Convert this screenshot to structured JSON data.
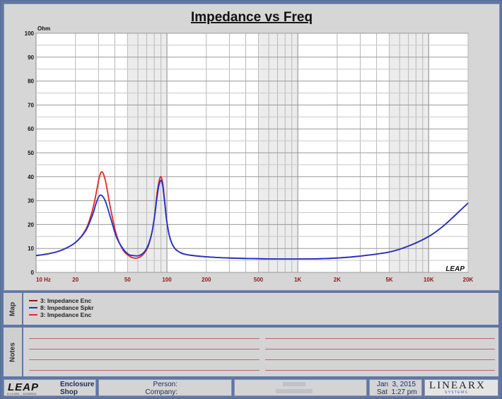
{
  "chart_data": {
    "type": "line",
    "title": "Impedance vs Freq",
    "ylabel": "Ohm",
    "xscale": "log",
    "xlim": [
      10,
      20000
    ],
    "ylim": [
      0,
      100
    ],
    "grid": true,
    "x_ticks": [
      {
        "value": 10,
        "label": "10  Hz"
      },
      {
        "value": 20,
        "label": "20"
      },
      {
        "value": 50,
        "label": "50"
      },
      {
        "value": 100,
        "label": "100"
      },
      {
        "value": 200,
        "label": "200"
      },
      {
        "value": 500,
        "label": "500"
      },
      {
        "value": 1000,
        "label": "1K"
      },
      {
        "value": 2000,
        "label": "2K"
      },
      {
        "value": 5000,
        "label": "5K"
      },
      {
        "value": 10000,
        "label": "10K"
      },
      {
        "value": 20000,
        "label": "20K"
      }
    ],
    "y_ticks": [
      0,
      10,
      20,
      30,
      40,
      50,
      60,
      70,
      80,
      90,
      100
    ],
    "series": [
      {
        "name": "3: Impedance Enc",
        "color": "#e8252a",
        "x": [
          10,
          13,
          16,
          20,
          24,
          27,
          29,
          30.5,
          32,
          34,
          37,
          41,
          46,
          51,
          56,
          61,
          67,
          72,
          77,
          81,
          84,
          87,
          90,
          93,
          96,
          100,
          106,
          115,
          130,
          150,
          200,
          300,
          500,
          700,
          1000,
          1500,
          2000,
          3000,
          5000,
          7000,
          10000,
          13000,
          16000,
          20000
        ],
        "y": [
          7,
          8,
          9.5,
          12.5,
          18,
          26,
          34,
          40,
          42,
          38,
          27,
          16,
          9.5,
          7,
          6,
          6.2,
          8,
          11,
          17,
          25,
          33,
          38,
          40,
          37,
          30,
          21,
          14,
          10,
          8,
          7.2,
          6.5,
          6,
          5.7,
          5.6,
          5.6,
          5.7,
          6,
          6.8,
          8.5,
          11,
          15,
          19.5,
          24,
          29
        ]
      },
      {
        "name": "8: Impedance Spkr",
        "color": "#1f33c8",
        "x": [
          10,
          13,
          16,
          20,
          24,
          27,
          29,
          30.5,
          32,
          34,
          37,
          41,
          46,
          51,
          56,
          61,
          67,
          72,
          77,
          81,
          84,
          87,
          90,
          93,
          96,
          100,
          106,
          115,
          130,
          150,
          200,
          300,
          500,
          700,
          1000,
          1500,
          2000,
          3000,
          5000,
          7000,
          10000,
          13000,
          16000,
          20000
        ],
        "y": [
          7,
          8,
          9.5,
          12.5,
          17.5,
          24,
          29.5,
          32,
          32,
          29.5,
          23,
          15,
          10,
          7.5,
          7,
          7,
          8.5,
          11.5,
          17,
          24.5,
          31.5,
          36.5,
          38.5,
          36,
          29.5,
          21,
          14,
          10,
          8,
          7.2,
          6.5,
          6,
          5.7,
          5.6,
          5.6,
          5.7,
          6,
          6.8,
          8.5,
          11,
          15,
          19.5,
          24,
          29
        ]
      }
    ]
  },
  "map": {
    "tab_label": "Map",
    "items": [
      {
        "label": "3: Impedance Enc",
        "color": "#8b1a1a"
      },
      {
        "label": "8: Impedance Spkr",
        "color": "#1f33c8"
      },
      {
        "label": "3: Impedance Enc",
        "color": "#e8252a"
      }
    ]
  },
  "notes": {
    "tab_label": "Notes"
  },
  "watermark": "LEAP",
  "footer": {
    "logo": "LEAP",
    "version": "5.1.0.334     11/16/2011",
    "module_line1": "Enclosure",
    "module_line2": "Shop",
    "person_label": "Person:",
    "company_label": "Company:",
    "date": "Jan  3, 2015",
    "time": "Sat  1:27 pm",
    "brand": "LINEARX",
    "brand_sub": "S Y S T E M S"
  }
}
